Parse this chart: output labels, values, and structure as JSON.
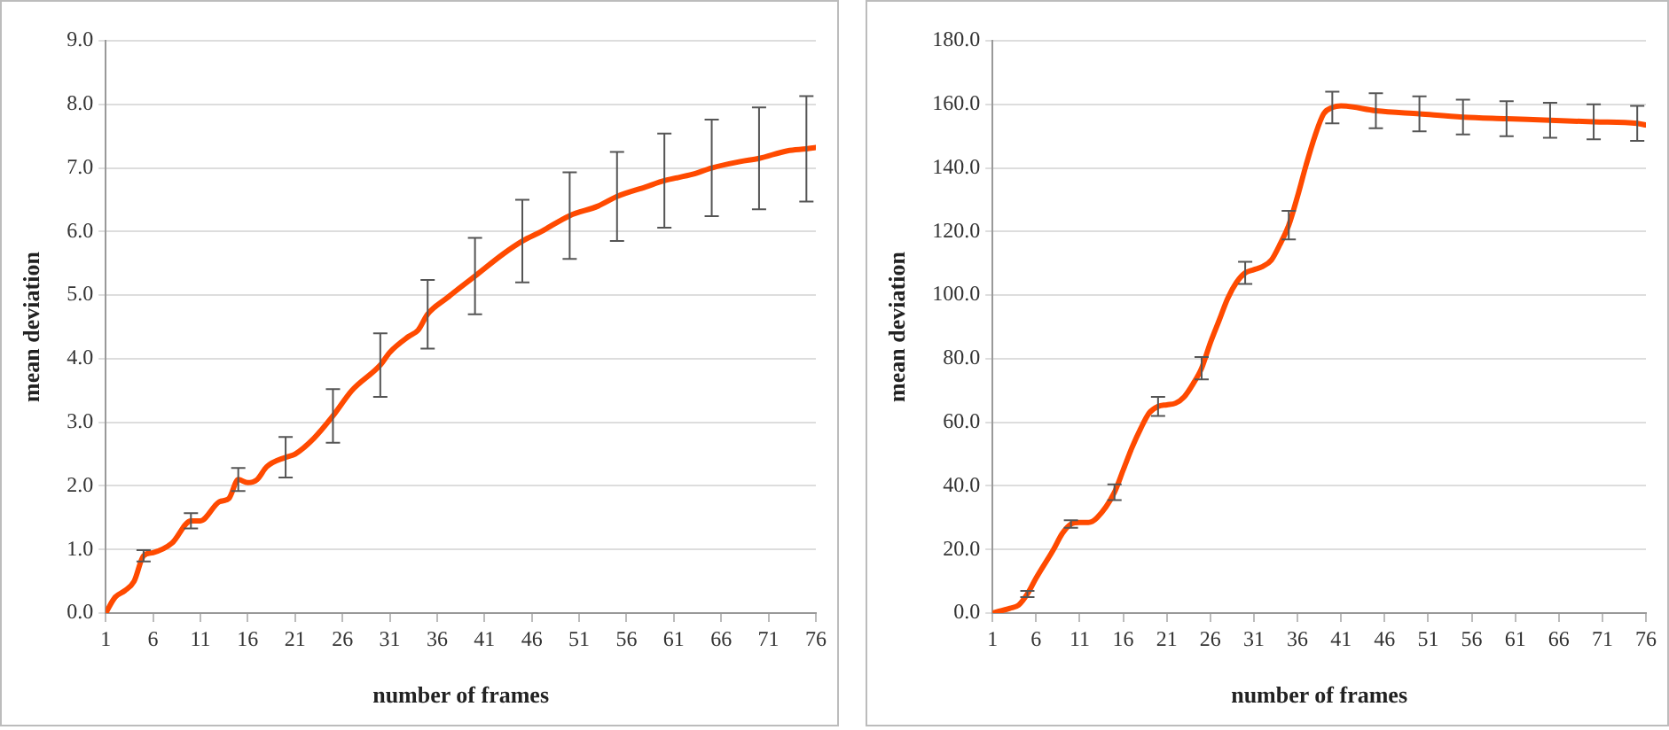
{
  "chart_data": [
    {
      "type": "line",
      "xlabel": "number of frames",
      "ylabel": "mean deviation",
      "grid": "y",
      "marker": "none",
      "line_style": "solid",
      "legend": false,
      "xlim": [
        1,
        76
      ],
      "xticks": [
        1,
        6,
        11,
        16,
        21,
        26,
        31,
        36,
        41,
        46,
        51,
        56,
        61,
        66,
        71,
        76
      ],
      "ylim": [
        0,
        9
      ],
      "yticks": [
        {
          "value": 0,
          "label": "0.0"
        },
        {
          "value": 1,
          "label": "1.0"
        },
        {
          "value": 2,
          "label": "2.0"
        },
        {
          "value": 3,
          "label": "3.0"
        },
        {
          "value": 4,
          "label": "4.0"
        },
        {
          "value": 5,
          "label": "5.0"
        },
        {
          "value": 6,
          "label": "6.0"
        },
        {
          "value": 7,
          "label": "7.0"
        },
        {
          "value": 8,
          "label": "8.0"
        },
        {
          "value": 9,
          "label": "9.0"
        }
      ],
      "x": [
        1,
        2,
        3,
        4,
        5,
        6,
        8,
        10,
        11,
        13,
        14,
        15,
        16,
        17,
        18,
        20,
        21,
        23,
        25,
        27,
        30,
        31,
        33,
        34,
        35,
        37,
        40,
        43,
        45,
        47,
        50,
        53,
        55,
        58,
        60,
        63,
        65,
        68,
        70,
        73,
        75,
        76
      ],
      "series": [
        {
          "color": "#ff4a00",
          "values": [
            0,
            0.25,
            0.35,
            0.5,
            0.9,
            0.95,
            1.1,
            1.45,
            1.45,
            1.75,
            1.8,
            2.1,
            2.05,
            2.1,
            2.3,
            2.45,
            2.5,
            2.75,
            3.1,
            3.5,
            3.9,
            4.1,
            4.35,
            4.45,
            4.7,
            4.95,
            5.3,
            5.65,
            5.85,
            6.0,
            6.25,
            6.4,
            6.55,
            6.7,
            6.8,
            6.9,
            7.0,
            7.1,
            7.15,
            7.27,
            7.3,
            7.32
          ],
          "errors": [
            null,
            null,
            null,
            null,
            0.09,
            null,
            null,
            0.12,
            null,
            null,
            null,
            0.18,
            null,
            null,
            null,
            0.32,
            null,
            null,
            0.42,
            null,
            0.5,
            null,
            null,
            null,
            0.54,
            null,
            0.6,
            null,
            0.65,
            null,
            0.68,
            null,
            0.7,
            null,
            0.74,
            null,
            0.76,
            null,
            0.8,
            null,
            0.83,
            null
          ]
        }
      ]
    },
    {
      "type": "line",
      "xlabel": "number of frames",
      "ylabel": "mean deviation",
      "grid": "y",
      "marker": "none",
      "line_style": "solid",
      "legend": false,
      "xlim": [
        1,
        76
      ],
      "xticks": [
        1,
        6,
        11,
        16,
        21,
        26,
        31,
        36,
        41,
        46,
        51,
        56,
        61,
        66,
        71,
        76
      ],
      "ylim": [
        0,
        180
      ],
      "yticks": [
        {
          "value": 0,
          "label": "0.0"
        },
        {
          "value": 20,
          "label": "20.0"
        },
        {
          "value": 40,
          "label": "40.0"
        },
        {
          "value": 60,
          "label": "60.0"
        },
        {
          "value": 80,
          "label": "80.0"
        },
        {
          "value": 100,
          "label": "100.0"
        },
        {
          "value": 120,
          "label": "120.0"
        },
        {
          "value": 140,
          "label": "140.0"
        },
        {
          "value": 160,
          "label": "160.0"
        },
        {
          "value": 180,
          "label": "180.0"
        }
      ],
      "x": [
        1,
        3,
        4,
        5,
        6,
        8,
        9,
        10,
        11,
        12,
        13,
        15,
        16,
        17,
        18,
        19,
        20,
        21,
        22,
        23,
        24,
        25,
        26,
        27,
        28,
        29,
        30,
        31,
        32,
        33,
        34,
        35,
        36,
        37,
        38,
        39,
        40,
        41,
        45,
        50,
        55,
        60,
        65,
        70,
        75,
        76
      ],
      "series": [
        {
          "color": "#ff4a00",
          "values": [
            0,
            1.5,
            2.5,
            6,
            11,
            20,
            25,
            28,
            28.5,
            28.5,
            30,
            38,
            45,
            52,
            58,
            63,
            65,
            65.5,
            66,
            68,
            72,
            77,
            85,
            92,
            99,
            104,
            107,
            108,
            109,
            111,
            116,
            122,
            131,
            141,
            150,
            157,
            159,
            159.5,
            158,
            157,
            156,
            155.5,
            155,
            154.5,
            154,
            153.5
          ],
          "errors": [
            null,
            null,
            null,
            1,
            null,
            null,
            null,
            1.2,
            null,
            null,
            null,
            2.5,
            null,
            null,
            null,
            null,
            3,
            null,
            null,
            null,
            null,
            3.5,
            null,
            null,
            null,
            null,
            3.5,
            null,
            null,
            null,
            null,
            4.5,
            null,
            null,
            null,
            null,
            5,
            null,
            5.5,
            5.5,
            5.5,
            5.5,
            5.5,
            5.5,
            5.5,
            null
          ]
        }
      ]
    }
  ]
}
